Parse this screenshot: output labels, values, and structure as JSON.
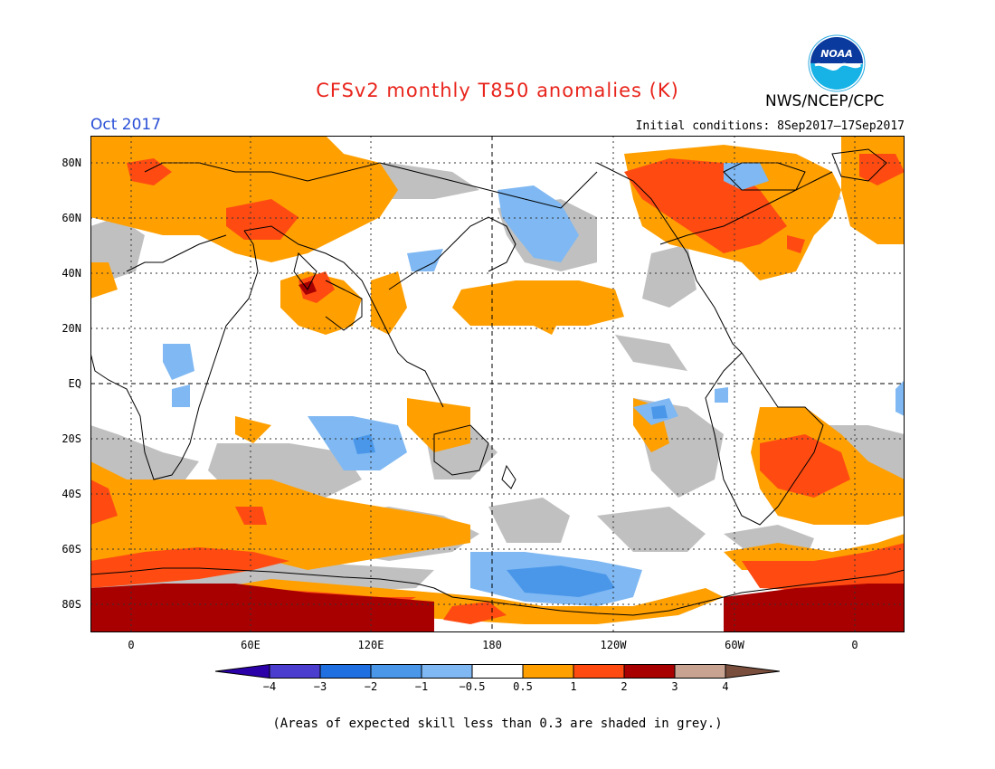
{
  "header": {
    "title": "CFSv2 monthly T850 anomalies (K)",
    "title_color": "#e8241b",
    "month": "Oct 2017",
    "month_color": "#2a4fd6",
    "agency": "NWS/NCEP/CPC",
    "initial_conditions": "Initial conditions: 8Sep2017–17Sep2017",
    "logo": "noaa-logo",
    "logo_text": "NOAA"
  },
  "map": {
    "projection": "equirectangular, centered on 180",
    "grid": "dotted",
    "lat_labels": [
      "80N",
      "60N",
      "40N",
      "20N",
      "EQ",
      "20S",
      "40S",
      "60S",
      "80S"
    ],
    "lon_labels": [
      "0",
      "60E",
      "120E",
      "180",
      "120W",
      "60W",
      "0"
    ]
  },
  "colorbar": {
    "ticks": [
      "−4",
      "−3",
      "−2",
      "−1",
      "−0.5",
      "0.5",
      "1",
      "2",
      "3",
      "4"
    ],
    "colors": [
      "#2b00a8",
      "#4b3ecf",
      "#1f6fe0",
      "#4a97ea",
      "#7fb8f2",
      "#ffffff",
      "#ff9f00",
      "#ff4b12",
      "#a80000",
      "#c8a392",
      "#7a4e3c"
    ],
    "grey_shade": "#c0c0c0"
  },
  "footnote": "(Areas of expected skill less than 0.3 are shaded in grey.)"
}
